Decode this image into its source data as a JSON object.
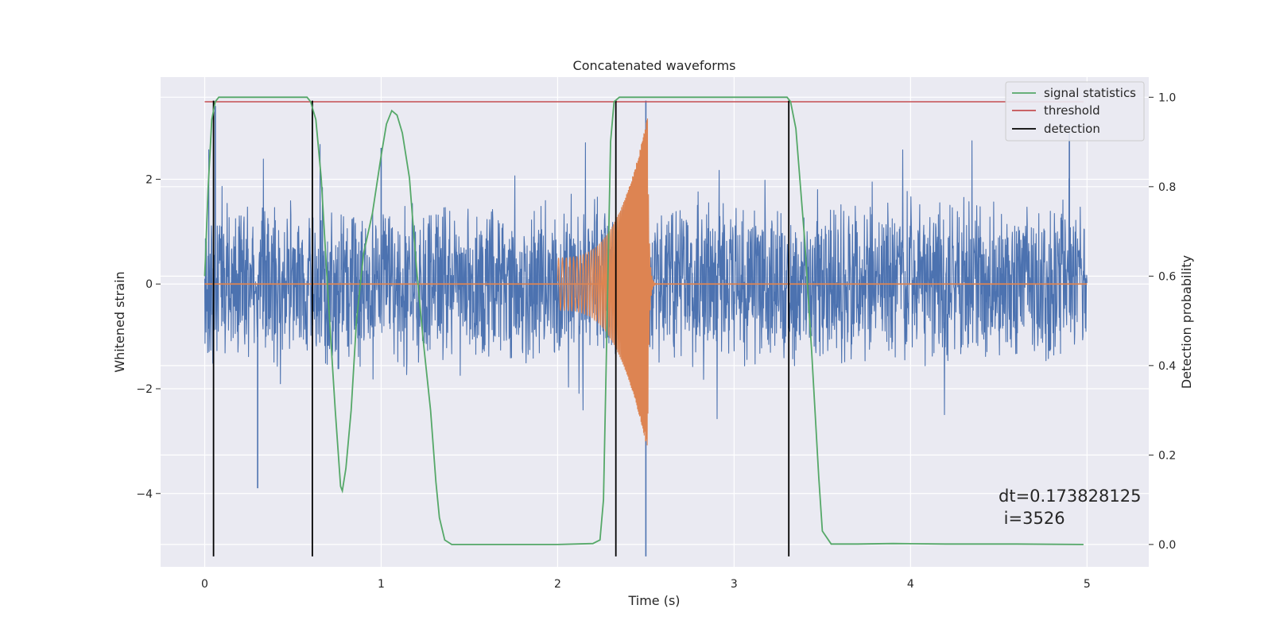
{
  "chart_data": {
    "type": "line",
    "title": "Concatenated waveforms",
    "xlabel": "Time (s)",
    "ylabel": "Whitened strain",
    "y2label": "Detection probability",
    "xlim": [
      -0.25,
      5.35
    ],
    "ylim": [
      -5.4,
      3.95
    ],
    "y2lim": [
      -0.05,
      1.045
    ],
    "x_ticks": [
      0,
      1,
      2,
      3,
      4,
      5
    ],
    "y_ticks": [
      -4,
      -2,
      0,
      2
    ],
    "y2_ticks": [
      0.0,
      0.2,
      0.4,
      0.6,
      0.8,
      1.0
    ],
    "grid": true,
    "legend_position": "top-right",
    "colors": {
      "noise": "#4c72b0",
      "injection": "#dd8452",
      "signal_statistics": "#55a868",
      "threshold": "#c44e52",
      "detection": "#000000",
      "background": "#eaeaf2"
    },
    "series": [
      {
        "name": "signal statistics",
        "axis": "right",
        "x": [
          0.0,
          0.02,
          0.04,
          0.06,
          0.08,
          0.1,
          0.2,
          0.4,
          0.58,
          0.6,
          0.63,
          0.66,
          0.7,
          0.74,
          0.77,
          0.78,
          0.8,
          0.83,
          0.86,
          0.9,
          0.95,
          1.0,
          1.03,
          1.06,
          1.09,
          1.12,
          1.16,
          1.2,
          1.24,
          1.28,
          1.31,
          1.33,
          1.36,
          1.4,
          1.6,
          2.0,
          2.2,
          2.24,
          2.26,
          2.28,
          2.3,
          2.32,
          2.35,
          2.4,
          2.6,
          3.0,
          3.3,
          3.32,
          3.35,
          3.4,
          3.44,
          3.48,
          3.5,
          3.55,
          3.7,
          3.9,
          4.2,
          4.6,
          4.98
        ],
        "y": [
          0.6,
          0.8,
          0.95,
          0.99,
          1.0,
          1.0,
          1.0,
          1.0,
          1.0,
          0.99,
          0.95,
          0.82,
          0.55,
          0.3,
          0.13,
          0.12,
          0.17,
          0.3,
          0.5,
          0.65,
          0.74,
          0.87,
          0.94,
          0.97,
          0.96,
          0.92,
          0.82,
          0.62,
          0.45,
          0.3,
          0.14,
          0.06,
          0.01,
          0.0,
          0.0,
          0.0,
          0.002,
          0.01,
          0.1,
          0.5,
          0.9,
          0.99,
          1.0,
          1.0,
          1.0,
          1.0,
          1.0,
          0.99,
          0.93,
          0.68,
          0.43,
          0.15,
          0.03,
          0.001,
          0.001,
          0.002,
          0.001,
          0.001,
          0.0
        ]
      },
      {
        "name": "threshold",
        "axis": "right",
        "x": [
          0.0,
          4.98
        ],
        "y": [
          0.99,
          0.99
        ]
      },
      {
        "name": "detection",
        "axis": "left",
        "x": [
          0.05,
          0.61,
          2.33,
          3.31
        ],
        "y_range": [
          -5.2,
          3.5
        ]
      }
    ],
    "noise_band": {
      "x_range": [
        0.0,
        5.0
      ],
      "typical_amplitude": 1.4,
      "max_peak": 3.5,
      "min_trough": -5.2
    },
    "injection": {
      "x_range": [
        2.0,
        2.51
      ],
      "start_amplitude": 0.5,
      "peak_amplitude": 3.2
    },
    "annotation": {
      "line1": "dt=0.173828125",
      "line2": " i=3526"
    }
  }
}
